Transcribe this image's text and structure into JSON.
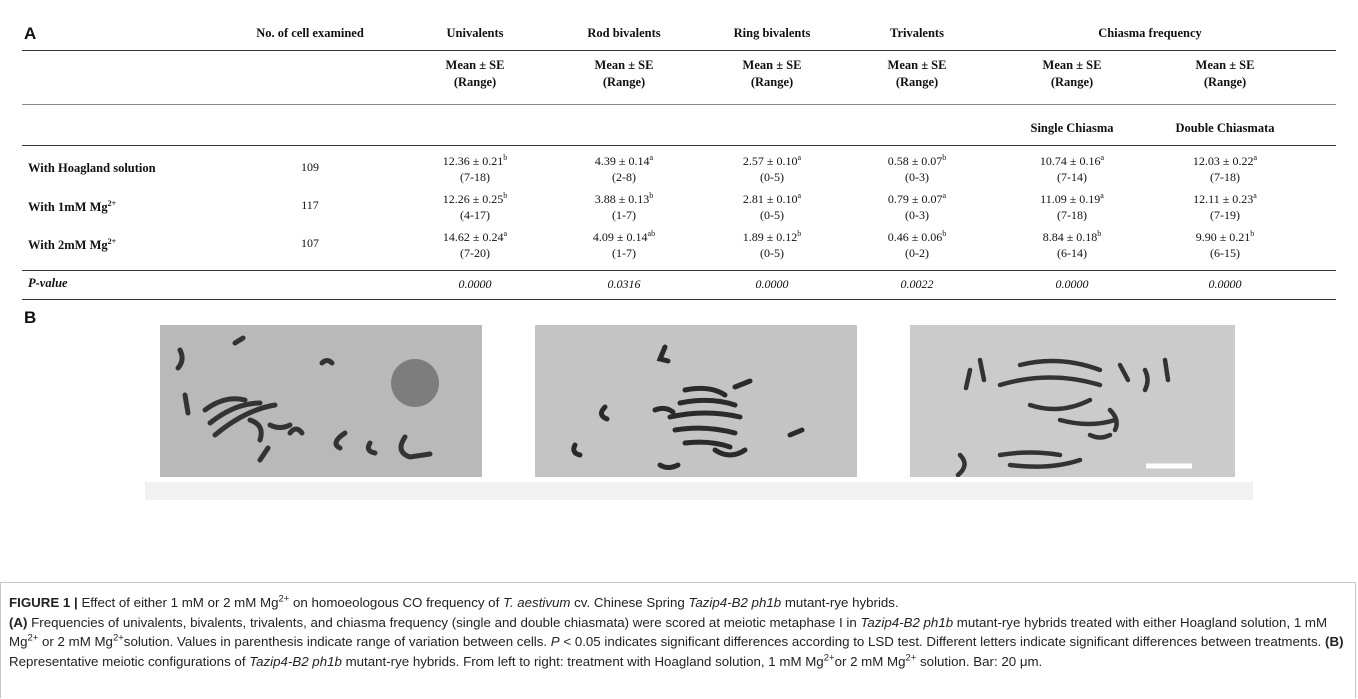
{
  "panel_a": "A",
  "panel_b": "B",
  "table": {
    "columns": [
      "No. of cell examined",
      "Univalents",
      "Rod bivalents",
      "Ring bivalents",
      "Trivalents",
      "Chiasma frequency"
    ],
    "stat_headers": [
      {
        "mean": "Mean ± SE",
        "range": "(Range)"
      },
      {
        "mean": "Mean ± SE",
        "range": "(Range)"
      },
      {
        "mean": "Mean ± SE",
        "range": "(Range)"
      },
      {
        "mean": "Mean ± SE",
        "range": "(Range)"
      },
      {
        "mean": "Mean ± SE",
        "range": "(Range)"
      },
      {
        "mean": "Mean ± SE",
        "range": "(Range)"
      }
    ],
    "chiasma_subheaders": [
      "Single Chiasma",
      "Double Chiasmata"
    ],
    "rows": [
      {
        "label": "With Hoagland solution",
        "n": 109,
        "cells": [
          {
            "mean": "12.36 ± 0.21",
            "sup": "b",
            "range": "(7-18)"
          },
          {
            "mean": "4.39 ± 0.14",
            "sup": "a",
            "range": "(2-8)"
          },
          {
            "mean": "2.57 ± 0.10",
            "sup": "a",
            "range": "(0-5)"
          },
          {
            "mean": "0.58 ± 0.07",
            "sup": "b",
            "range": "(0-3)"
          },
          {
            "mean": "10.74 ± 0.16",
            "sup": "a",
            "range": "(7-14)"
          },
          {
            "mean": "12.03 ± 0.22",
            "sup": "a",
            "range": "(7-18)"
          }
        ]
      },
      {
        "label": "With 1mM Mg",
        "label_sup": "2+",
        "n": 117,
        "cells": [
          {
            "mean": "12.26 ± 0.25",
            "sup": "b",
            "range": "(4-17)"
          },
          {
            "mean": "3.88 ± 0.13",
            "sup": "b",
            "range": "(1-7)"
          },
          {
            "mean": "2.81 ± 0.10",
            "sup": "a",
            "range": "(0-5)"
          },
          {
            "mean": "0.79 ± 0.07",
            "sup": "a",
            "range": "(0-3)"
          },
          {
            "mean": "11.09 ± 0.19",
            "sup": "a",
            "range": "(7-18)"
          },
          {
            "mean": "12.11 ± 0.23",
            "sup": "a",
            "range": "(7-19)"
          }
        ]
      },
      {
        "label": "With 2mM Mg",
        "label_sup": "2+",
        "n": 107,
        "cells": [
          {
            "mean": "14.62 ± 0.24",
            "sup": "a",
            "range": "(7-20)"
          },
          {
            "mean": "4.09 ± 0.14",
            "sup": "ab",
            "range": "(1-7)"
          },
          {
            "mean": "1.89 ± 0.12",
            "sup": "b",
            "range": "(0-5)"
          },
          {
            "mean": "0.46 ± 0.06",
            "sup": "b",
            "range": "(0-2)"
          },
          {
            "mean": "8.84 ± 0.18",
            "sup": "b",
            "range": "(6-14)"
          },
          {
            "mean": "9.90 ± 0.21",
            "sup": "b",
            "range": "(6-15)"
          }
        ]
      }
    ],
    "p_row": {
      "label": "P-value",
      "values": [
        "0.0000",
        "0.0316",
        "0.0000",
        "0.0022",
        "0.0000",
        "0.0000"
      ]
    }
  },
  "caption": {
    "paragraphs": [
      [
        {
          "text": "FIGURE 1 | ",
          "style": "b"
        },
        {
          "text": "Effect of either 1 mM or 2 mM Mg"
        },
        {
          "text": "2+",
          "style": "sup"
        },
        {
          "text": " on homoeologous CO frequency of "
        },
        {
          "text": "T. aestivum",
          "style": "i"
        },
        {
          "text": " cv. Chinese Spring "
        },
        {
          "text": "Tazip4-B2 ph1b",
          "style": "i"
        },
        {
          "text": " mutant-rye hybrids."
        }
      ],
      [
        {
          "text": "(A)",
          "style": "b"
        },
        {
          "text": " Frequencies of univalents, bivalents, trivalents, and chiasma frequency (single and double chiasmata) were scored at meiotic metaphase I in "
        },
        {
          "text": "Tazip4-B2 ph1b",
          "style": "i"
        },
        {
          "text": " mutant-rye hybrids treated with either Hoagland solution, 1 mM Mg"
        },
        {
          "text": "2+",
          "style": "sup"
        },
        {
          "text": " or 2 mM Mg"
        },
        {
          "text": "2+",
          "style": "sup"
        },
        {
          "text": "solution. Values in parenthesis indicate range of variation between cells. "
        },
        {
          "text": "P",
          "style": "i"
        },
        {
          "text": " < 0.05 indicates significant differences according to LSD test. Different letters indicate significant differences between treatments. "
        },
        {
          "text": "(B)",
          "style": "b"
        },
        {
          "text": " Representative meiotic configurations of "
        },
        {
          "text": "Tazip4-B2 ph1b",
          "style": "i"
        },
        {
          "text": " mutant-rye hybrids. From left to right: treatment with Hoagland solution, 1 mM Mg"
        },
        {
          "text": "2+",
          "style": "sup"
        },
        {
          "text": "or 2 mM Mg"
        },
        {
          "text": "2+",
          "style": "sup"
        },
        {
          "text": " solution. Bar: 20 μm."
        }
      ]
    ]
  }
}
